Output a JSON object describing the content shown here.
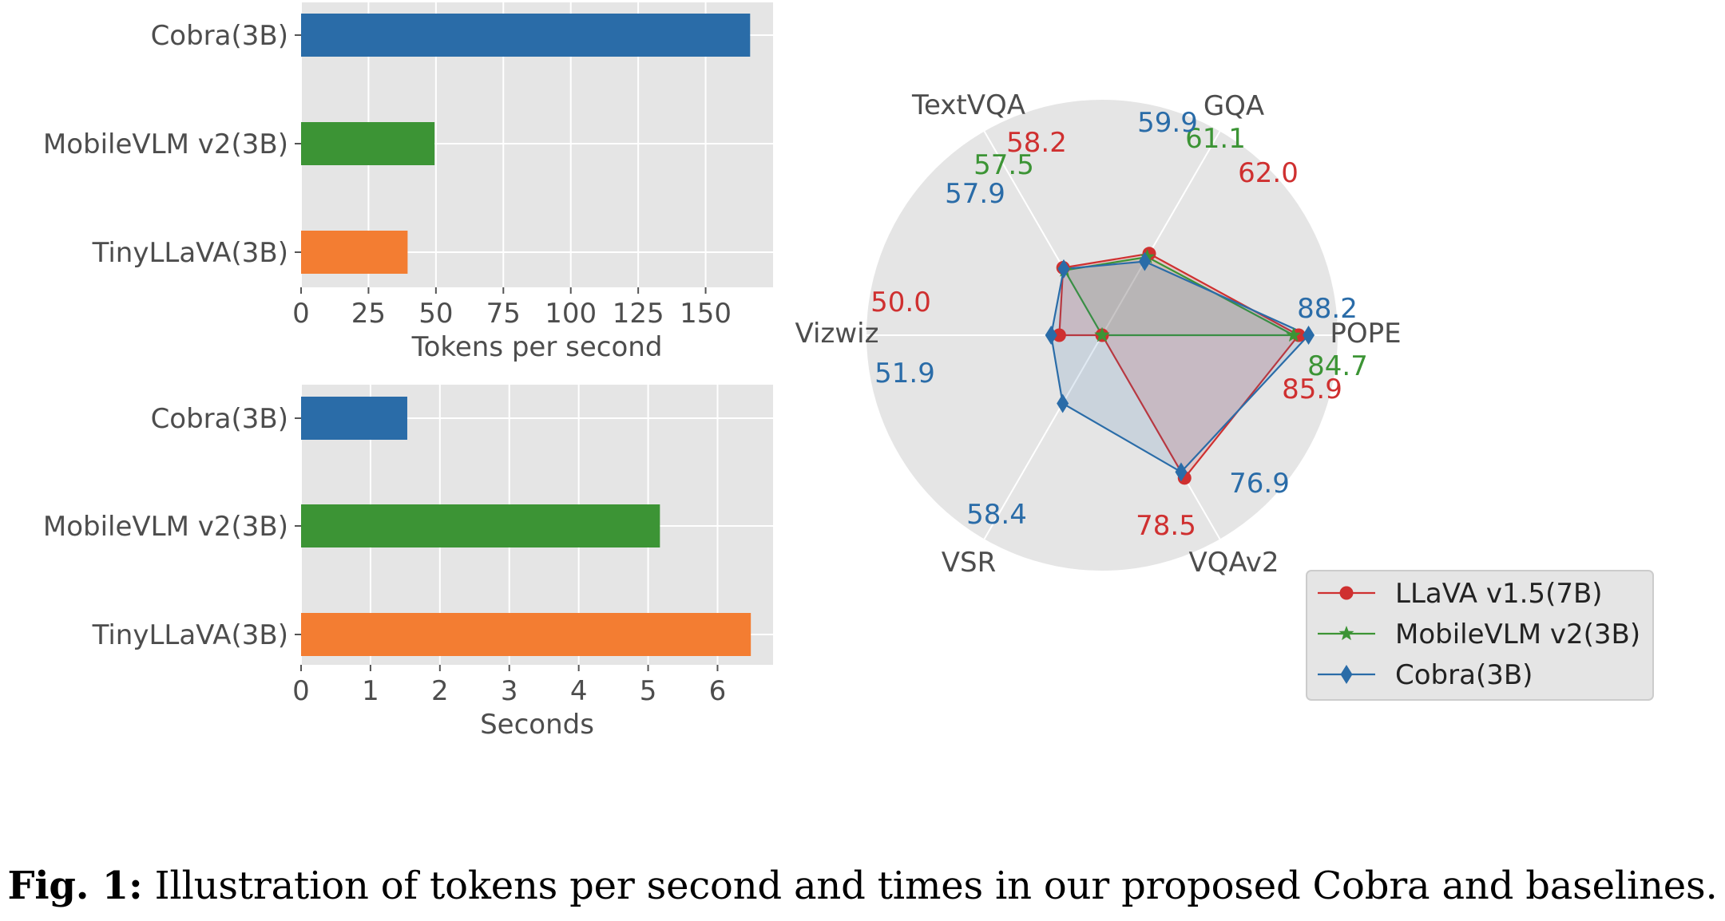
{
  "caption": {
    "label": "Fig. 1:",
    "text": "Illustration of tokens per second and times in our proposed Cobra and baselines."
  },
  "colors": {
    "axes_bg": "#e5e5e5",
    "grid": "#ffffff",
    "tick_text": "#4d4d4d",
    "Cobra(3B)": "#2a6ca8",
    "MobileVLM v2(3B)": "#3c9435",
    "TinyLLaVA(3B)": "#f37d32",
    "LLaVA v1.5(7B)": "#cf3030"
  },
  "chart_data": [
    {
      "type": "bar",
      "orientation": "horizontal",
      "categories": [
        "Cobra(3B)",
        "MobileVLM v2(3B)",
        "TinyLLaVA(3B)"
      ],
      "values": [
        166.5,
        49.5,
        39.5
      ],
      "xlabel": "Tokens per second",
      "xlim": [
        0,
        175
      ],
      "xticks": [
        "0",
        "25",
        "50",
        "75",
        "100",
        "125",
        "150"
      ],
      "grid": true
    },
    {
      "type": "bar",
      "orientation": "horizontal",
      "categories": [
        "Cobra(3B)",
        "MobileVLM v2(3B)",
        "TinyLLaVA(3B)"
      ],
      "values": [
        1.53,
        5.17,
        6.48
      ],
      "xlabel": "Seconds",
      "xlim": [
        0,
        6.8
      ],
      "xticks": [
        "0",
        "1",
        "2",
        "3",
        "4",
        "5",
        "6"
      ],
      "grid": true
    },
    {
      "type": "radar",
      "axes": [
        "POPE",
        "GQA",
        "TextVQA",
        "Vizwiz",
        "VSR",
        "VQAv2"
      ],
      "series": [
        {
          "name": "LLaVA v1.5(7B)",
          "marker": "circle",
          "values": [
            85.9,
            62.0,
            58.2,
            50.0,
            null,
            78.5
          ],
          "labels": [
            "85.9",
            "62.0",
            "58.2",
            "50.0",
            "",
            "78.5"
          ]
        },
        {
          "name": "MobileVLM v2(3B)",
          "marker": "star",
          "values": [
            84.7,
            61.1,
            57.5,
            null,
            null,
            null
          ],
          "labels": [
            "84.7",
            "61.1",
            "57.5",
            "",
            "",
            ""
          ]
        },
        {
          "name": "Cobra(3B)",
          "marker": "diamond",
          "values": [
            88.2,
            59.9,
            57.9,
            51.9,
            58.4,
            76.9
          ],
          "labels": [
            "88.2",
            "59.9",
            "57.9",
            "51.9",
            "58.4",
            "76.9"
          ]
        }
      ],
      "legend": "bottom-right",
      "grid": true
    }
  ]
}
